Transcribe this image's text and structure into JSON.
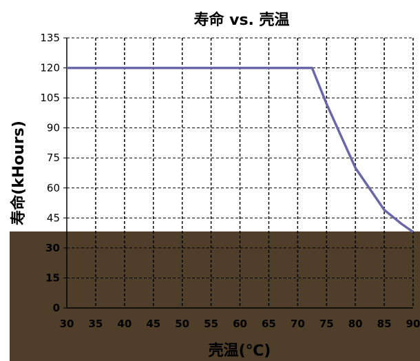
{
  "chart_data": {
    "type": "line",
    "title": "寿命 vs. 壳温",
    "xlabel": "壳温(℃)",
    "ylabel": "寿命(kHours)",
    "x": [
      30,
      72.5,
      75,
      80,
      85,
      88,
      90
    ],
    "series": [
      {
        "values": [
          120,
          120,
          102,
          70,
          49,
          42,
          38
        ]
      }
    ],
    "xlim": [
      30,
      90
    ],
    "ylim": [
      0,
      135
    ],
    "xticks": [
      "30",
      "35",
      "40",
      "45",
      "50",
      "55",
      "60",
      "65",
      "70",
      "75",
      "80",
      "85",
      "90"
    ],
    "yticks": [
      "0",
      "15",
      "30",
      "45",
      "60",
      "75",
      "90",
      "105",
      "120",
      "135"
    ],
    "grid": true,
    "colors": {
      "line": "#6a66a8",
      "grid": "#000000",
      "overlay": "#4e3e2a"
    }
  }
}
